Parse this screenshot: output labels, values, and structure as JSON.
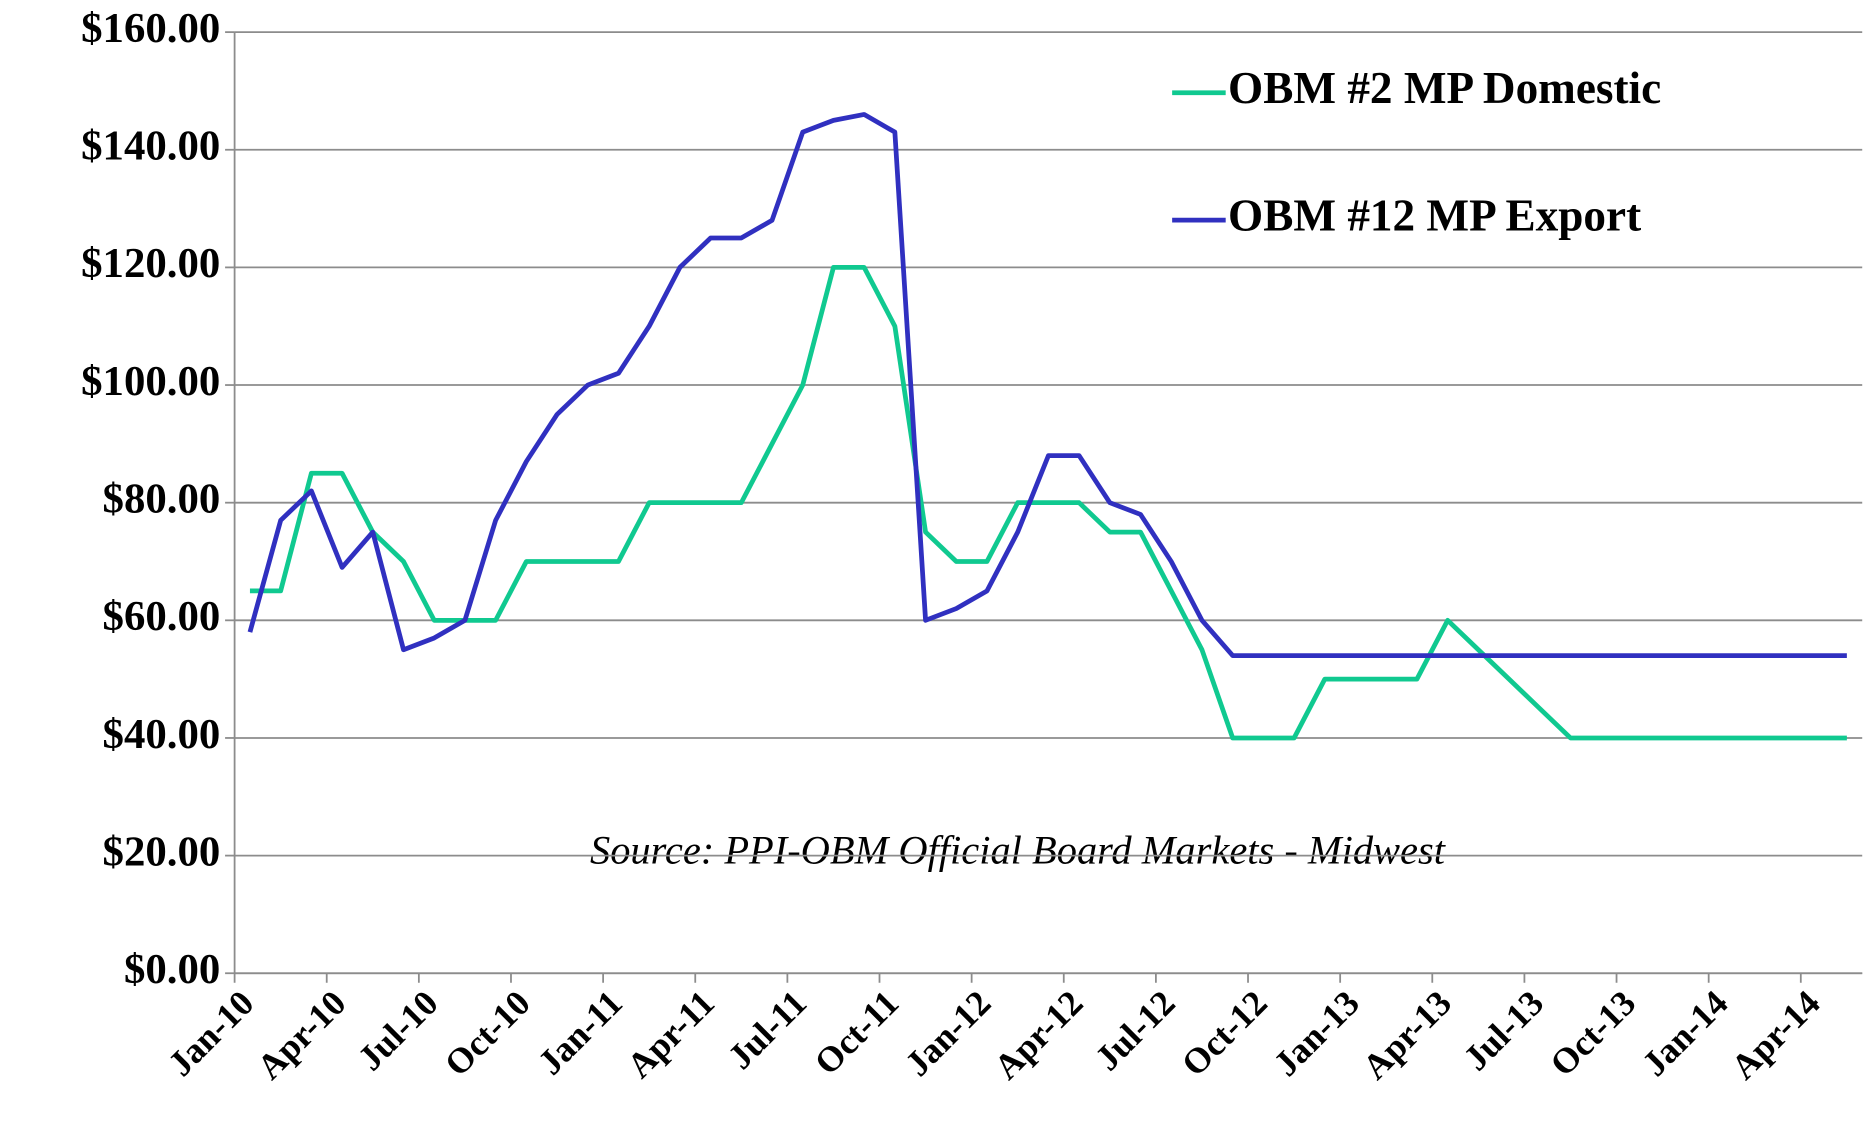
{
  "chart_data": {
    "type": "line",
    "annotation": "Source: PPI-OBM Official Board Markets - Midwest",
    "categories": [
      "Jan-10",
      null,
      null,
      "Apr-10",
      null,
      null,
      "Jul-10",
      null,
      null,
      "Oct-10",
      null,
      null,
      "Jan-11",
      null,
      null,
      "Apr-11",
      null,
      null,
      "Jul-11",
      null,
      null,
      "Oct-11",
      null,
      null,
      "Jan-12",
      null,
      null,
      "Apr-12",
      null,
      null,
      "Jul-12",
      null,
      null,
      "Oct-12",
      null,
      null,
      "Jan-13",
      null,
      null,
      "Apr-13",
      null,
      null,
      "Jul-13",
      null,
      null,
      "Oct-13",
      null,
      null,
      "Jan-14",
      null,
      null,
      "Apr-14",
      null
    ],
    "series": [
      {
        "name": "OBM #2 MP Domestic",
        "color": "#10c990",
        "values": [
          65,
          65,
          85,
          85,
          75,
          70,
          60,
          60,
          60,
          70,
          70,
          70,
          70,
          80,
          80,
          80,
          80,
          90,
          100,
          120,
          120,
          110,
          75,
          70,
          70,
          80,
          80,
          80,
          75,
          75,
          65,
          55,
          40,
          40,
          40,
          50,
          50,
          50,
          50,
          60,
          55,
          50,
          45,
          40,
          40,
          40,
          40,
          40,
          40,
          40,
          40,
          40,
          40
        ]
      },
      {
        "name": "OBM #12 MP Export",
        "color": "#3030c0",
        "values": [
          58,
          77,
          82,
          69,
          75,
          55,
          57,
          60,
          77,
          87,
          95,
          100,
          102,
          110,
          120,
          125,
          125,
          128,
          143,
          145,
          146,
          143,
          60,
          62,
          65,
          75,
          88,
          88,
          80,
          78,
          70,
          60,
          54,
          54,
          54,
          54,
          54,
          54,
          54,
          54,
          54,
          54,
          54,
          54,
          54,
          54,
          54,
          54,
          54,
          54,
          54,
          54,
          54
        ]
      }
    ],
    "ylim": [
      0,
      160
    ],
    "yticks": [
      {
        "value": 0,
        "label": "$0.00"
      },
      {
        "value": 20,
        "label": "$20.00"
      },
      {
        "value": 40,
        "label": "$40.00"
      },
      {
        "value": 60,
        "label": "$60.00"
      },
      {
        "value": 80,
        "label": "$80.00"
      },
      {
        "value": 100,
        "label": "$100.00"
      },
      {
        "value": 120,
        "label": "$120.00"
      },
      {
        "value": 140,
        "label": "$140.00"
      },
      {
        "value": 160,
        "label": "$160.00"
      }
    ],
    "grid": true,
    "legend": "top-right"
  }
}
